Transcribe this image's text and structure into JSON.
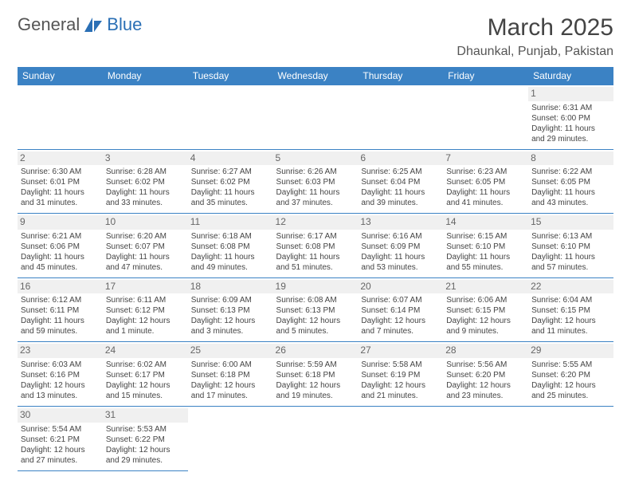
{
  "logo": {
    "part1": "General",
    "part2": "Blue"
  },
  "title": "March 2025",
  "location": "Dhaunkal, Punjab, Pakistan",
  "header_bg": "#3b82c4",
  "header_fg": "#ffffff",
  "divider_color": "#3b82c4",
  "daynum_bg": "#f0f0f0",
  "text_color": "#444444",
  "font_family": "Arial",
  "day_headers": [
    "Sunday",
    "Monday",
    "Tuesday",
    "Wednesday",
    "Thursday",
    "Friday",
    "Saturday"
  ],
  "weeks": [
    [
      null,
      null,
      null,
      null,
      null,
      null,
      {
        "n": "1",
        "rise": "Sunrise: 6:31 AM",
        "set": "Sunset: 6:00 PM",
        "dl": "Daylight: 11 hours and 29 minutes."
      }
    ],
    [
      {
        "n": "2",
        "rise": "Sunrise: 6:30 AM",
        "set": "Sunset: 6:01 PM",
        "dl": "Daylight: 11 hours and 31 minutes."
      },
      {
        "n": "3",
        "rise": "Sunrise: 6:28 AM",
        "set": "Sunset: 6:02 PM",
        "dl": "Daylight: 11 hours and 33 minutes."
      },
      {
        "n": "4",
        "rise": "Sunrise: 6:27 AM",
        "set": "Sunset: 6:02 PM",
        "dl": "Daylight: 11 hours and 35 minutes."
      },
      {
        "n": "5",
        "rise": "Sunrise: 6:26 AM",
        "set": "Sunset: 6:03 PM",
        "dl": "Daylight: 11 hours and 37 minutes."
      },
      {
        "n": "6",
        "rise": "Sunrise: 6:25 AM",
        "set": "Sunset: 6:04 PM",
        "dl": "Daylight: 11 hours and 39 minutes."
      },
      {
        "n": "7",
        "rise": "Sunrise: 6:23 AM",
        "set": "Sunset: 6:05 PM",
        "dl": "Daylight: 11 hours and 41 minutes."
      },
      {
        "n": "8",
        "rise": "Sunrise: 6:22 AM",
        "set": "Sunset: 6:05 PM",
        "dl": "Daylight: 11 hours and 43 minutes."
      }
    ],
    [
      {
        "n": "9",
        "rise": "Sunrise: 6:21 AM",
        "set": "Sunset: 6:06 PM",
        "dl": "Daylight: 11 hours and 45 minutes."
      },
      {
        "n": "10",
        "rise": "Sunrise: 6:20 AM",
        "set": "Sunset: 6:07 PM",
        "dl": "Daylight: 11 hours and 47 minutes."
      },
      {
        "n": "11",
        "rise": "Sunrise: 6:18 AM",
        "set": "Sunset: 6:08 PM",
        "dl": "Daylight: 11 hours and 49 minutes."
      },
      {
        "n": "12",
        "rise": "Sunrise: 6:17 AM",
        "set": "Sunset: 6:08 PM",
        "dl": "Daylight: 11 hours and 51 minutes."
      },
      {
        "n": "13",
        "rise": "Sunrise: 6:16 AM",
        "set": "Sunset: 6:09 PM",
        "dl": "Daylight: 11 hours and 53 minutes."
      },
      {
        "n": "14",
        "rise": "Sunrise: 6:15 AM",
        "set": "Sunset: 6:10 PM",
        "dl": "Daylight: 11 hours and 55 minutes."
      },
      {
        "n": "15",
        "rise": "Sunrise: 6:13 AM",
        "set": "Sunset: 6:10 PM",
        "dl": "Daylight: 11 hours and 57 minutes."
      }
    ],
    [
      {
        "n": "16",
        "rise": "Sunrise: 6:12 AM",
        "set": "Sunset: 6:11 PM",
        "dl": "Daylight: 11 hours and 59 minutes."
      },
      {
        "n": "17",
        "rise": "Sunrise: 6:11 AM",
        "set": "Sunset: 6:12 PM",
        "dl": "Daylight: 12 hours and 1 minute."
      },
      {
        "n": "18",
        "rise": "Sunrise: 6:09 AM",
        "set": "Sunset: 6:13 PM",
        "dl": "Daylight: 12 hours and 3 minutes."
      },
      {
        "n": "19",
        "rise": "Sunrise: 6:08 AM",
        "set": "Sunset: 6:13 PM",
        "dl": "Daylight: 12 hours and 5 minutes."
      },
      {
        "n": "20",
        "rise": "Sunrise: 6:07 AM",
        "set": "Sunset: 6:14 PM",
        "dl": "Daylight: 12 hours and 7 minutes."
      },
      {
        "n": "21",
        "rise": "Sunrise: 6:06 AM",
        "set": "Sunset: 6:15 PM",
        "dl": "Daylight: 12 hours and 9 minutes."
      },
      {
        "n": "22",
        "rise": "Sunrise: 6:04 AM",
        "set": "Sunset: 6:15 PM",
        "dl": "Daylight: 12 hours and 11 minutes."
      }
    ],
    [
      {
        "n": "23",
        "rise": "Sunrise: 6:03 AM",
        "set": "Sunset: 6:16 PM",
        "dl": "Daylight: 12 hours and 13 minutes."
      },
      {
        "n": "24",
        "rise": "Sunrise: 6:02 AM",
        "set": "Sunset: 6:17 PM",
        "dl": "Daylight: 12 hours and 15 minutes."
      },
      {
        "n": "25",
        "rise": "Sunrise: 6:00 AM",
        "set": "Sunset: 6:18 PM",
        "dl": "Daylight: 12 hours and 17 minutes."
      },
      {
        "n": "26",
        "rise": "Sunrise: 5:59 AM",
        "set": "Sunset: 6:18 PM",
        "dl": "Daylight: 12 hours and 19 minutes."
      },
      {
        "n": "27",
        "rise": "Sunrise: 5:58 AM",
        "set": "Sunset: 6:19 PM",
        "dl": "Daylight: 12 hours and 21 minutes."
      },
      {
        "n": "28",
        "rise": "Sunrise: 5:56 AM",
        "set": "Sunset: 6:20 PM",
        "dl": "Daylight: 12 hours and 23 minutes."
      },
      {
        "n": "29",
        "rise": "Sunrise: 5:55 AM",
        "set": "Sunset: 6:20 PM",
        "dl": "Daylight: 12 hours and 25 minutes."
      }
    ],
    [
      {
        "n": "30",
        "rise": "Sunrise: 5:54 AM",
        "set": "Sunset: 6:21 PM",
        "dl": "Daylight: 12 hours and 27 minutes."
      },
      {
        "n": "31",
        "rise": "Sunrise: 5:53 AM",
        "set": "Sunset: 6:22 PM",
        "dl": "Daylight: 12 hours and 29 minutes."
      },
      null,
      null,
      null,
      null,
      null
    ]
  ]
}
